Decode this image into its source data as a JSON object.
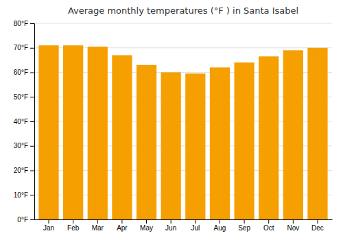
{
  "chart_data": {
    "type": "bar",
    "title": "Average monthly temperatures (°F ) in Santa Isabel",
    "categories": [
      "Jan",
      "Feb",
      "Mar",
      "Apr",
      "May",
      "Jun",
      "Jul",
      "Aug",
      "Sep",
      "Oct",
      "Nov",
      "Dec"
    ],
    "values": [
      71,
      71,
      70.5,
      67,
      63,
      60,
      59.5,
      62,
      64,
      66.5,
      69,
      70
    ],
    "color": "#F5A000",
    "ylim": [
      0,
      80
    ],
    "yticks": [
      {
        "value": 0,
        "label": "0°F"
      },
      {
        "value": 10,
        "label": "10°F"
      },
      {
        "value": 20,
        "label": "20°F"
      },
      {
        "value": 30,
        "label": "30°F"
      },
      {
        "value": 40,
        "label": "40°F"
      },
      {
        "value": 50,
        "label": "50°F"
      },
      {
        "value": 60,
        "label": "60°F"
      },
      {
        "value": 70,
        "label": "70°F"
      },
      {
        "value": 80,
        "label": "80°F"
      }
    ],
    "grid": true
  }
}
